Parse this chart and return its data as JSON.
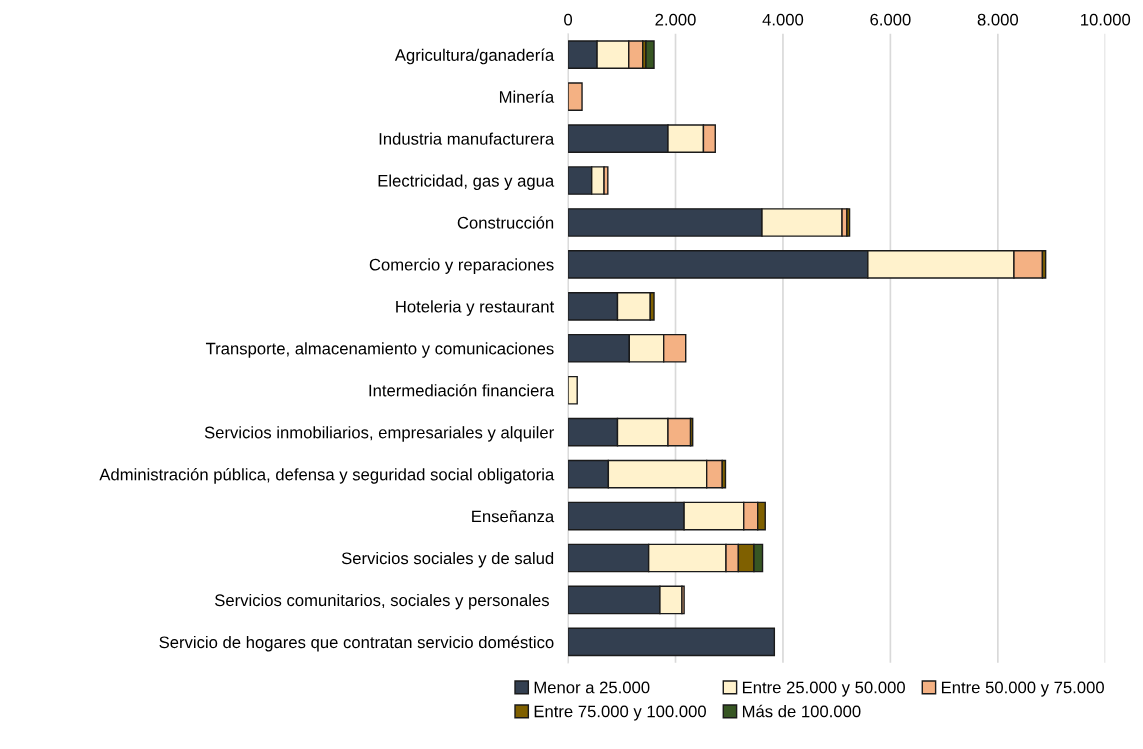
{
  "chart_data": {
    "type": "bar",
    "orientation": "horizontal",
    "stacked": true,
    "categories": [
      "Agricultura/ganadería",
      "Minería",
      "Industria manufacturera",
      "Electricidad, gas y agua",
      "Construcción",
      "Comercio y reparaciones",
      "Hoteleria y restaurant",
      "Transporte, almacenamiento y comunicaciones",
      "Intermediación financiera",
      "Servicios inmobiliarios, empresariales y alquiler",
      "Administración pública, defensa y seguridad social obligatoria",
      "Enseñanza",
      "Servicios sociales y de salud",
      "Servicios comunitarios, sociales y personales ",
      "Servicio de hogares que contratan servicio doméstico"
    ],
    "series": [
      {
        "name": "Menor a 25.000",
        "color": "#333f50",
        "values": [
          540,
          null,
          1860,
          440,
          3610,
          5580,
          920,
          1140,
          null,
          920,
          750,
          2160,
          1500,
          1710,
          3840
        ]
      },
      {
        "name": "Entre 25.000 y 50.000",
        "color": "#fff2cc",
        "values": [
          590,
          null,
          660,
          230,
          1490,
          2720,
          610,
          640,
          170,
          940,
          1830,
          1110,
          1440,
          410,
          null
        ]
      },
      {
        "name": "Entre 50.000 y 75.000",
        "color": "#f4b183",
        "values": [
          260,
          260,
          220,
          70,
          90,
          530,
          null,
          410,
          null,
          420,
          290,
          260,
          230,
          40,
          null
        ]
      },
      {
        "name": "Entre 75.000 y 100.000",
        "color": "#7f6000",
        "values": [
          60,
          null,
          null,
          null,
          50,
          60,
          70,
          null,
          null,
          40,
          60,
          140,
          290,
          null,
          null
        ]
      },
      {
        "name": "Más de 100.000",
        "color": "#375623",
        "values": [
          150,
          null,
          null,
          null,
          null,
          null,
          null,
          null,
          null,
          null,
          null,
          null,
          160,
          null,
          null
        ]
      }
    ],
    "xlim": [
      0,
      10000
    ],
    "xticks": [
      {
        "value": 0,
        "label": "0"
      },
      {
        "value": 2000,
        "label": "2.000"
      },
      {
        "value": 4000,
        "label": "4.000"
      },
      {
        "value": 6000,
        "label": "6.000"
      },
      {
        "value": 8000,
        "label": "8.000"
      },
      {
        "value": 10000,
        "label": "10.000"
      }
    ],
    "grid": "x",
    "legend": "bottom"
  }
}
